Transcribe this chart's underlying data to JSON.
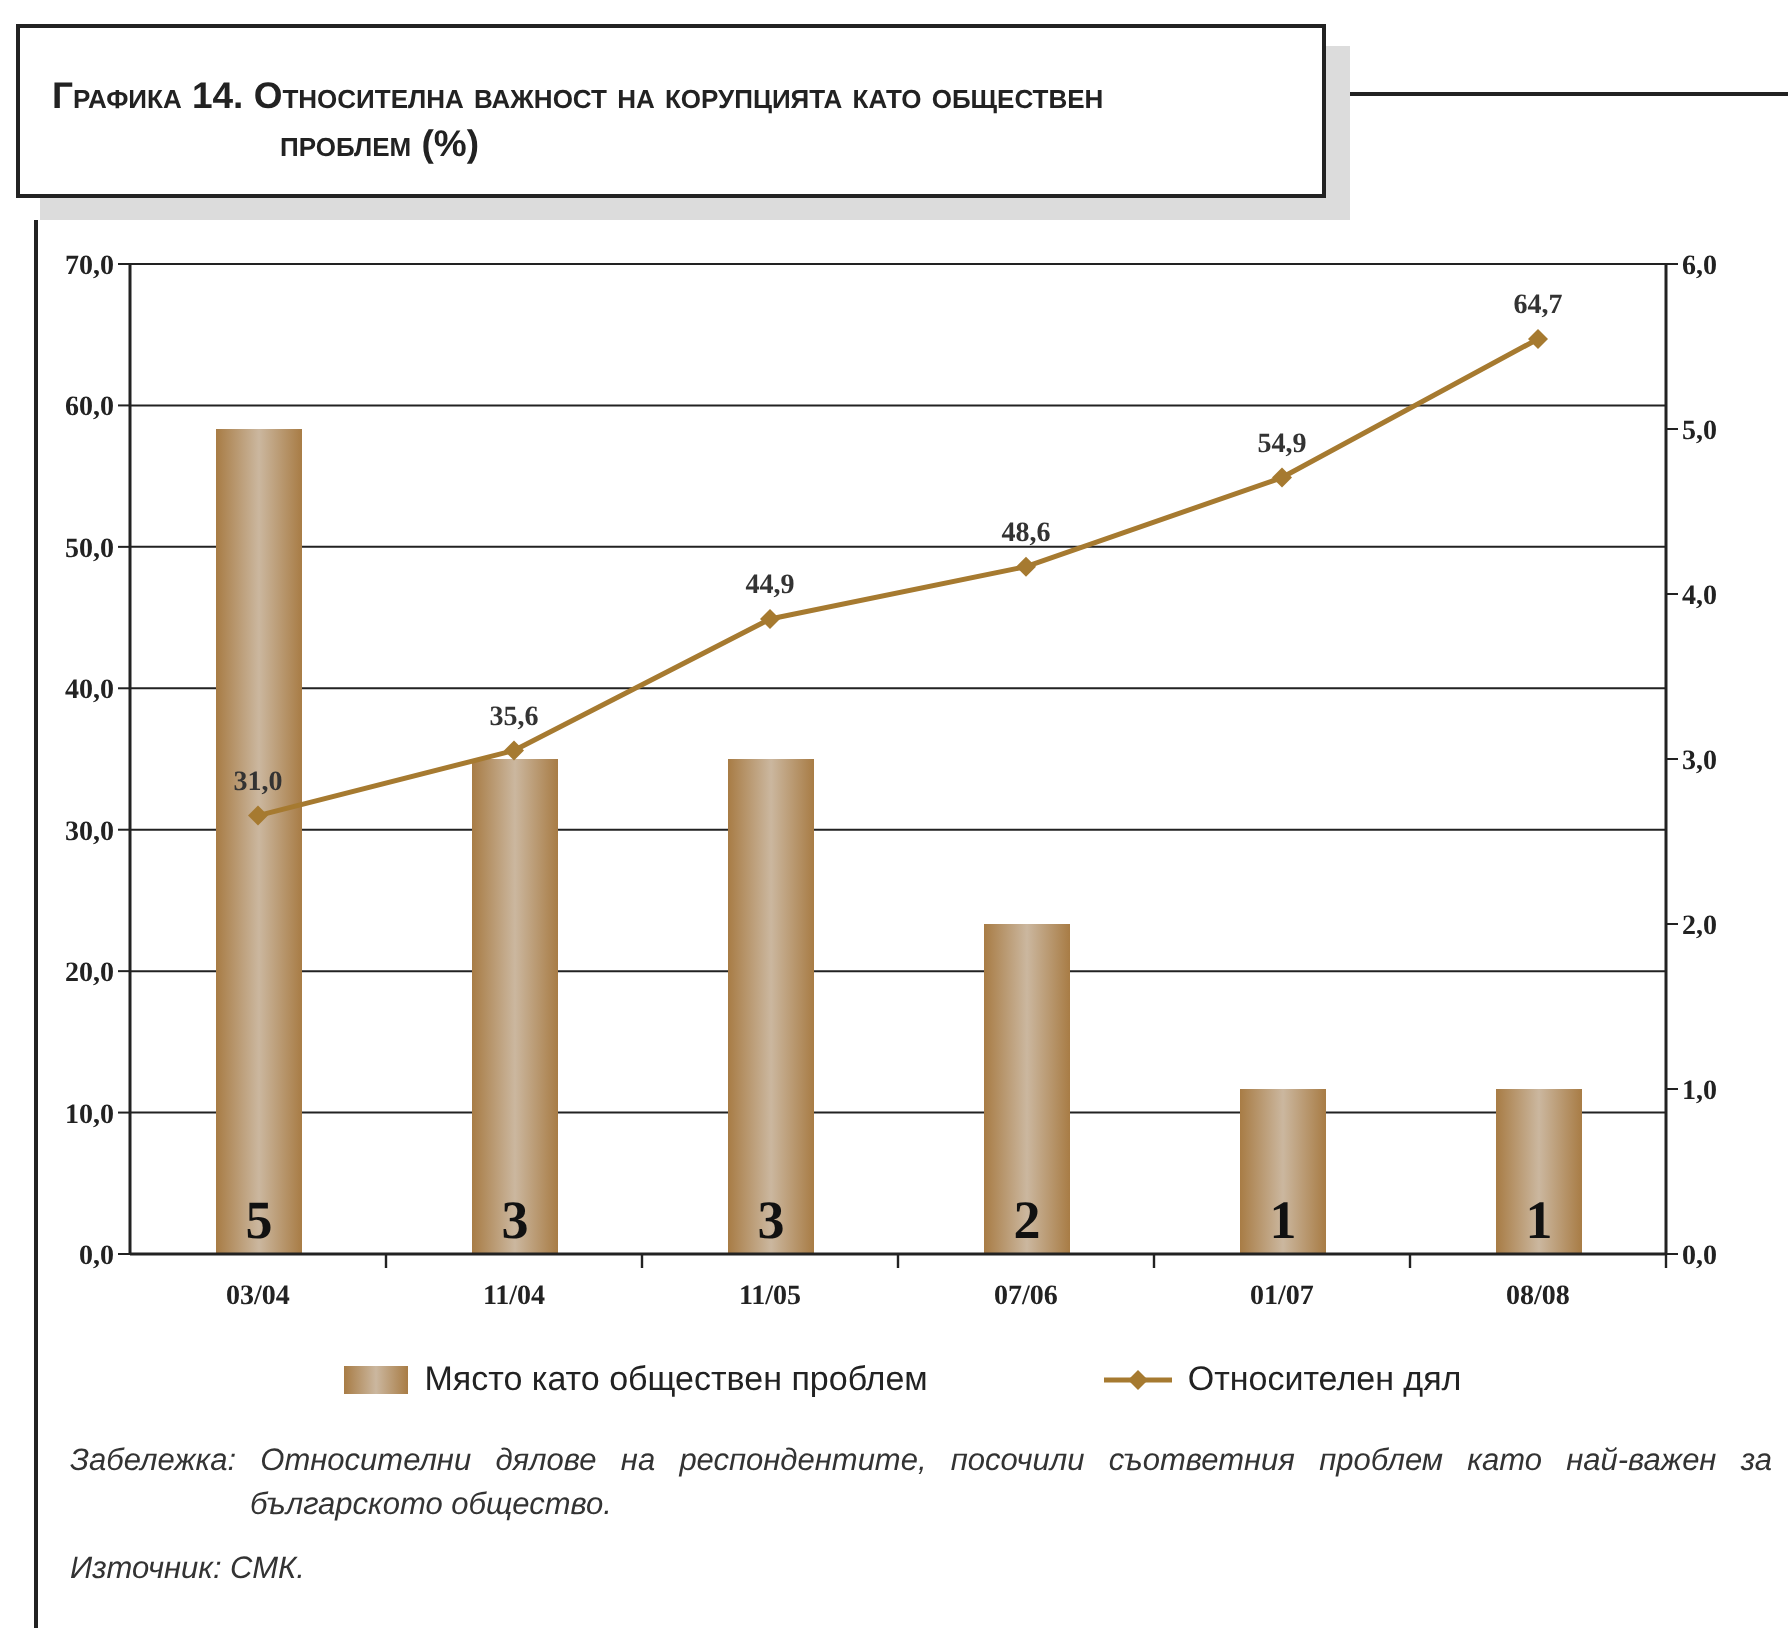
{
  "chart_data": {
    "type": "bar",
    "title": "Графика 14. Относителна важност на корупцията като обществен проблем (%)",
    "categories": [
      "03/04",
      "11/04",
      "11/05",
      "07/06",
      "01/07",
      "08/08"
    ],
    "series": [
      {
        "name": "Място като обществен проблем",
        "color": "#a87c45",
        "axis": "y2",
        "values": [
          5,
          3,
          3,
          2,
          1,
          1
        ],
        "value_labels": [
          "5",
          "3",
          "3",
          "2",
          "1",
          "1"
        ]
      },
      {
        "name": "Относителен дял",
        "type": "line",
        "color": "#a67a30",
        "values": [
          31.0,
          35.6,
          44.9,
          48.6,
          54.9,
          64.7
        ],
        "value_labels": [
          "31,0",
          "35,6",
          "44,9",
          "48,6",
          "54,9",
          "64,7"
        ]
      }
    ],
    "ylim": [
      0,
      70
    ],
    "yticks": [
      {
        "value": 0,
        "label": "0,0"
      },
      {
        "value": 10,
        "label": "10,0"
      },
      {
        "value": 20,
        "label": "20,0"
      },
      {
        "value": 30,
        "label": "30,0"
      },
      {
        "value": 40,
        "label": "40,0"
      },
      {
        "value": 50,
        "label": "50,0"
      },
      {
        "value": 60,
        "label": "60,0"
      },
      {
        "value": 70,
        "label": "70,0"
      }
    ],
    "y2lim": [
      0,
      6
    ],
    "y2ticks": [
      {
        "value": 0,
        "label": "0,0"
      },
      {
        "value": 1,
        "label": "1,0"
      },
      {
        "value": 2,
        "label": "2,0"
      },
      {
        "value": 3,
        "label": "3,0"
      },
      {
        "value": 4,
        "label": "4,0"
      },
      {
        "value": 5,
        "label": "5,0"
      },
      {
        "value": 6,
        "label": "6,0"
      }
    ],
    "grid": "y",
    "legend": "bottom",
    "marker": "diamond",
    "annotations": [
      "Забележка: Относителни дялове на респондентите, посочили съответния проблем като най-важен за българското общество.",
      "Източник: СМК."
    ]
  }
}
